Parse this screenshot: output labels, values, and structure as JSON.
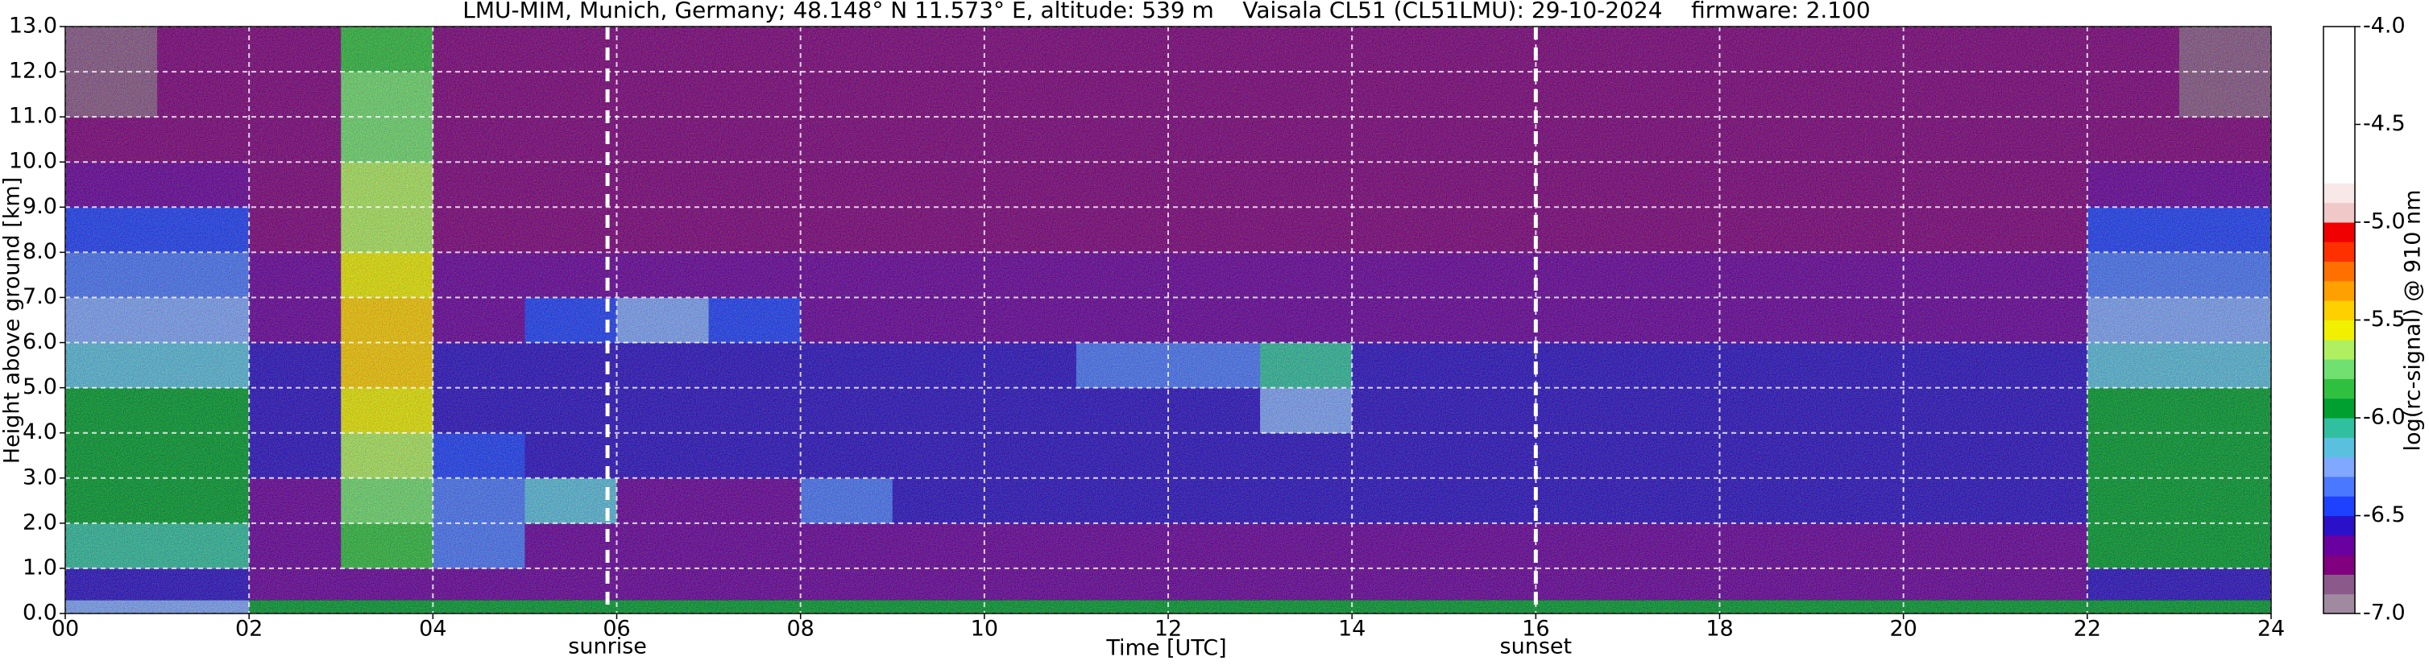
{
  "chart_data": {
    "type": "heatmap",
    "title": "LMU-MIM, Munich, Germany; 48.148° N 11.573° E, altitude: 539 m    Vaisala CL51 (CL51LMU): 29-10-2024    firmware: 2.100",
    "x_label": "Time [UTC]",
    "y_label": "Height above ground [km]",
    "colorbar_label": "log(rc-signal) @ 910 nm",
    "xlim": [
      0,
      24
    ],
    "ylim": [
      0,
      13
    ],
    "zlim": [
      -7,
      -4
    ],
    "xticks": [
      {
        "value": 0,
        "label": "00"
      },
      {
        "value": 2,
        "label": "02"
      },
      {
        "value": 4,
        "label": "04"
      },
      {
        "value": 6,
        "label": "06"
      },
      {
        "value": 8,
        "label": "08"
      },
      10,
      12,
      14,
      16,
      18,
      20,
      22,
      24
    ],
    "yticks": [
      {
        "value": 0,
        "label": "0.0"
      },
      {
        "value": 1,
        "label": "1.0"
      },
      {
        "value": 2,
        "label": "2.0"
      },
      {
        "value": 3,
        "label": "3.0"
      },
      {
        "value": 4,
        "label": "4.0"
      },
      {
        "value": 5,
        "label": "5.0"
      },
      {
        "value": 6,
        "label": "6.0"
      },
      {
        "value": 7,
        "label": "7.0"
      },
      {
        "value": 8,
        "label": "8.0"
      },
      {
        "value": 9,
        "label": "9.0"
      },
      {
        "value": 10,
        "label": "10.0"
      },
      {
        "value": 11,
        "label": "11.0"
      },
      {
        "value": 12,
        "label": "12.0"
      },
      {
        "value": 13,
        "label": "13.0"
      }
    ],
    "zticks": [
      {
        "value": -4,
        "label": "-4.0"
      },
      {
        "value": -4.5,
        "label": "-4.5"
      },
      {
        "value": -5,
        "label": "-5.0"
      },
      {
        "value": -5.5,
        "label": "-5.5"
      },
      {
        "value": -6,
        "label": "-6.0"
      },
      {
        "value": -6.5,
        "label": "-6.5"
      },
      {
        "value": -7,
        "label": "-7.0"
      }
    ],
    "grid": true,
    "colors": [
      "#a08aa0",
      "#8b5a8b",
      "#800080",
      "#6a00a0",
      "#2a10c8",
      "#1e40ff",
      "#4a78ff",
      "#80a8ff",
      "#5ac0e0",
      "#30c0a0",
      "#00a030",
      "#30c040",
      "#70e070",
      "#b0f060",
      "#f0f000",
      "#ffd000",
      "#ffa000",
      "#ff7000",
      "#ff3000",
      "#f00000",
      "#f0c8c8",
      "#f8e8e8",
      "#ffffff",
      "#ffffff",
      "#ffffff",
      "#ffffff",
      "#ffffff",
      "#ffffff",
      "#ffffff",
      "#ffffff"
    ],
    "annotations": [
      {
        "text": "sunrise",
        "x": 5.9
      },
      {
        "text": "sunset",
        "x": 16
      }
    ],
    "x_edges": [
      0,
      1,
      2,
      3,
      4,
      5,
      6,
      7,
      8,
      9,
      10,
      11,
      12,
      13,
      14,
      15,
      16,
      17,
      18,
      19,
      20,
      21,
      22,
      23,
      24
    ],
    "y_edges": [
      0,
      0.3,
      1,
      2,
      3,
      4,
      5,
      6,
      7,
      8,
      9,
      10,
      11,
      12,
      13
    ],
    "z": [
      [
        -6.3,
        -6.3,
        -6.0,
        -6.0,
        -6.0,
        -6.0,
        -6.0,
        -6.0,
        -6.0,
        -6.0,
        -6.0,
        -6.0,
        -6.0,
        -6.0,
        -6.0,
        -6.0,
        -6.0,
        -6.0,
        -6.0,
        -6.0,
        -6.0,
        -6.0,
        -6.0,
        -6.0
      ],
      [
        -6.6,
        -6.6,
        -6.7,
        -6.7,
        -6.7,
        -6.7,
        -6.7,
        -6.7,
        -6.7,
        -6.7,
        -6.7,
        -6.7,
        -6.7,
        -6.7,
        -6.7,
        -6.7,
        -6.7,
        -6.7,
        -6.7,
        -6.7,
        -6.7,
        -6.7,
        -6.6,
        -6.6
      ],
      [
        -6.1,
        -6.1,
        -6.7,
        -5.9,
        -6.4,
        -6.7,
        -6.7,
        -6.7,
        -6.7,
        -6.7,
        -6.7,
        -6.7,
        -6.7,
        -6.7,
        -6.7,
        -6.7,
        -6.7,
        -6.7,
        -6.7,
        -6.7,
        -6.7,
        -6.7,
        -6.0,
        -6.0
      ],
      [
        -6.0,
        -6.0,
        -6.7,
        -5.8,
        -6.4,
        -6.2,
        -6.7,
        -6.7,
        -6.4,
        -6.6,
        -6.6,
        -6.6,
        -6.6,
        -6.6,
        -6.6,
        -6.6,
        -6.6,
        -6.6,
        -6.6,
        -6.6,
        -6.6,
        -6.6,
        -6.0,
        -6.0
      ],
      [
        -6.0,
        -6.0,
        -6.6,
        -5.7,
        -6.5,
        -6.6,
        -6.6,
        -6.6,
        -6.6,
        -6.6,
        -6.6,
        -6.6,
        -6.6,
        -6.6,
        -6.6,
        -6.6,
        -6.6,
        -6.6,
        -6.6,
        -6.6,
        -6.6,
        -6.6,
        -6.0,
        -6.0
      ],
      [
        -6.0,
        -6.0,
        -6.6,
        -5.6,
        -6.6,
        -6.6,
        -6.6,
        -6.6,
        -6.6,
        -6.6,
        -6.6,
        -6.6,
        -6.6,
        -6.3,
        -6.6,
        -6.6,
        -6.6,
        -6.6,
        -6.6,
        -6.6,
        -6.6,
        -6.6,
        -6.0,
        -6.0
      ],
      [
        -6.2,
        -6.2,
        -6.6,
        -5.5,
        -6.6,
        -6.6,
        -6.6,
        -6.6,
        -6.6,
        -6.6,
        -6.6,
        -6.4,
        -6.4,
        -6.1,
        -6.6,
        -6.6,
        -6.6,
        -6.6,
        -6.6,
        -6.6,
        -6.6,
        -6.6,
        -6.2,
        -6.2
      ],
      [
        -6.3,
        -6.3,
        -6.7,
        -5.5,
        -6.7,
        -6.5,
        -6.3,
        -6.5,
        -6.7,
        -6.7,
        -6.7,
        -6.7,
        -6.7,
        -6.7,
        -6.7,
        -6.7,
        -6.7,
        -6.7,
        -6.7,
        -6.7,
        -6.7,
        -6.7,
        -6.3,
        -6.3
      ],
      [
        -6.4,
        -6.4,
        -6.7,
        -5.6,
        -6.7,
        -6.7,
        -6.7,
        -6.7,
        -6.7,
        -6.7,
        -6.7,
        -6.7,
        -6.7,
        -6.7,
        -6.7,
        -6.7,
        -6.7,
        -6.7,
        -6.7,
        -6.7,
        -6.7,
        -6.7,
        -6.4,
        -6.4
      ],
      [
        -6.5,
        -6.5,
        -6.8,
        -5.7,
        -6.8,
        -6.8,
        -6.8,
        -6.8,
        -6.8,
        -6.8,
        -6.8,
        -6.8,
        -6.8,
        -6.8,
        -6.8,
        -6.8,
        -6.8,
        -6.8,
        -6.8,
        -6.8,
        -6.8,
        -6.8,
        -6.5,
        -6.5
      ],
      [
        -6.7,
        -6.7,
        -6.8,
        -5.7,
        -6.8,
        -6.8,
        -6.8,
        -6.8,
        -6.8,
        -6.8,
        -6.8,
        -6.8,
        -6.8,
        -6.8,
        -6.8,
        -6.8,
        -6.8,
        -6.8,
        -6.8,
        -6.8,
        -6.8,
        -6.8,
        -6.7,
        -6.7
      ],
      [
        -6.8,
        -6.8,
        -6.8,
        -5.8,
        -6.8,
        -6.8,
        -6.8,
        -6.8,
        -6.8,
        -6.8,
        -6.8,
        -6.8,
        -6.8,
        -6.8,
        -6.8,
        -6.8,
        -6.8,
        -6.8,
        -6.8,
        -6.8,
        -6.8,
        -6.8,
        -6.8,
        -6.8
      ],
      [
        -6.9,
        -6.8,
        -6.8,
        -5.8,
        -6.8,
        -6.8,
        -6.8,
        -6.8,
        -6.8,
        -6.8,
        -6.8,
        -6.8,
        -6.8,
        -6.8,
        -6.8,
        -6.8,
        -6.8,
        -6.8,
        -6.8,
        -6.8,
        -6.8,
        -6.8,
        -6.8,
        -6.9
      ],
      [
        -6.9,
        -6.8,
        -6.8,
        -5.9,
        -6.8,
        -6.8,
        -6.8,
        -6.8,
        -6.8,
        -6.8,
        -6.8,
        -6.8,
        -6.8,
        -6.8,
        -6.8,
        -6.8,
        -6.8,
        -6.8,
        -6.8,
        -6.8,
        -6.8,
        -6.8,
        -6.8,
        -6.9
      ]
    ]
  }
}
